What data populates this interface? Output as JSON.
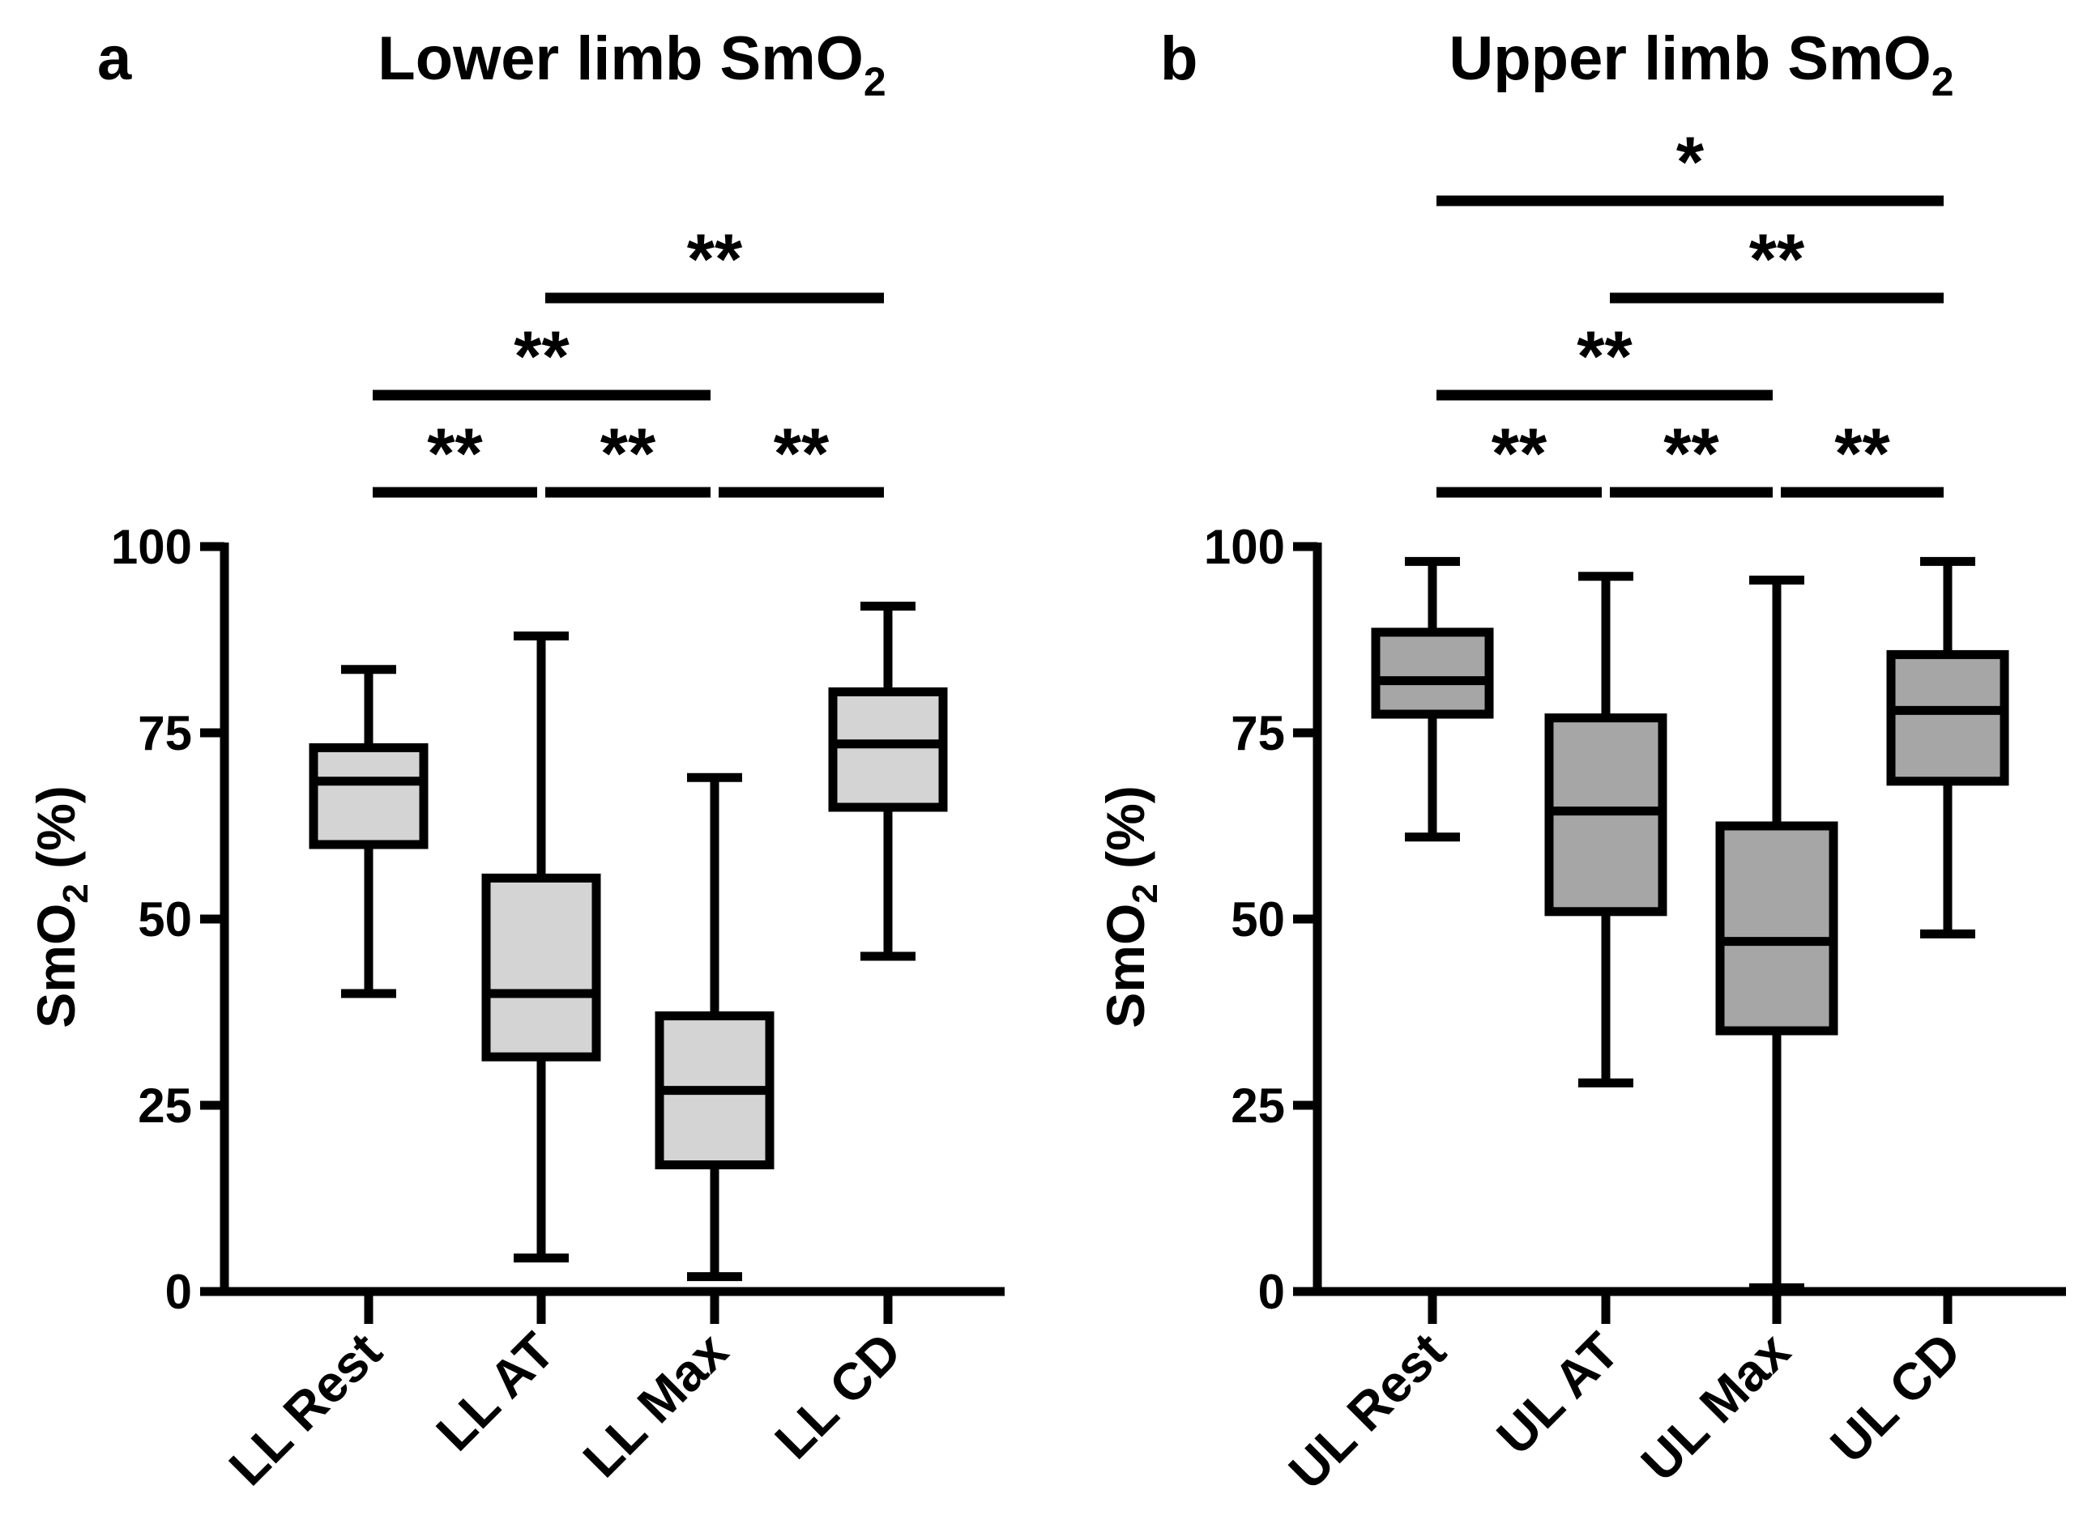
{
  "chart_data": [
    {
      "type": "box",
      "panel_letter": "a",
      "title": "Lower limb SmO",
      "title_subscript": "2",
      "ylabel": "SmO",
      "ylabel_subscript": "2",
      "ylabel_suffix": " (%)",
      "ylim": [
        0,
        100
      ],
      "yticks": [
        0,
        25,
        50,
        75,
        100
      ],
      "fill": "#d4d4d4",
      "categories": [
        "LL Rest",
        "LL AT",
        "LL Max",
        "LL CD"
      ],
      "boxes": [
        {
          "min": 40,
          "q1": 60,
          "median": 68.5,
          "q3": 73,
          "max": 83.5
        },
        {
          "min": 4.5,
          "q1": 31.5,
          "median": 40,
          "q3": 55.5,
          "max": 88
        },
        {
          "min": 2,
          "q1": 17,
          "median": 27,
          "q3": 37,
          "max": 69
        },
        {
          "min": 45,
          "q1": 65,
          "median": 73.5,
          "q3": 80.5,
          "max": 92
        }
      ],
      "significance": [
        {
          "from": 0,
          "to": 1,
          "label": "**",
          "level": 0
        },
        {
          "from": 1,
          "to": 2,
          "label": "**",
          "level": 0
        },
        {
          "from": 2,
          "to": 3,
          "label": "**",
          "level": 0
        },
        {
          "from": 0,
          "to": 2,
          "label": "**",
          "level": 1
        },
        {
          "from": 1,
          "to": 3,
          "label": "**",
          "level": 2
        }
      ]
    },
    {
      "type": "box",
      "panel_letter": "b",
      "title": "Upper limb SmO",
      "title_subscript": "2",
      "ylabel": "SmO",
      "ylabel_subscript": "2",
      "ylabel_suffix": " (%)",
      "ylim": [
        0,
        100
      ],
      "yticks": [
        0,
        25,
        50,
        75,
        100
      ],
      "fill": "#a6a6a6",
      "categories": [
        "UL Rest",
        "UL AT",
        "UL Max",
        "UL CD"
      ],
      "boxes": [
        {
          "min": 61,
          "q1": 77.5,
          "median": 82,
          "q3": 88.5,
          "max": 98
        },
        {
          "min": 28,
          "q1": 51,
          "median": 64.5,
          "q3": 77,
          "max": 96
        },
        {
          "min": 0.5,
          "q1": 35,
          "median": 47,
          "q3": 62.5,
          "max": 95.5
        },
        {
          "min": 48,
          "q1": 68.5,
          "median": 78,
          "q3": 85.5,
          "max": 98
        }
      ],
      "significance": [
        {
          "from": 0,
          "to": 1,
          "label": "**",
          "level": 0
        },
        {
          "from": 1,
          "to": 2,
          "label": "**",
          "level": 0
        },
        {
          "from": 2,
          "to": 3,
          "label": "**",
          "level": 0
        },
        {
          "from": 0,
          "to": 2,
          "label": "**",
          "level": 1
        },
        {
          "from": 1,
          "to": 3,
          "label": "**",
          "level": 2
        },
        {
          "from": 0,
          "to": 3,
          "label": "*",
          "level": 3
        }
      ]
    }
  ]
}
